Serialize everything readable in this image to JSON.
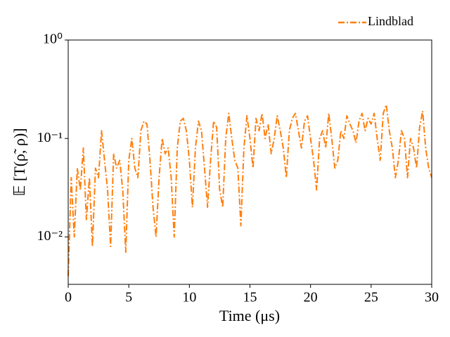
{
  "chart_data": {
    "type": "line",
    "xlabel": "Time (μs)",
    "ylabel": "𝔼 [T(ρ̃, ρ)]",
    "x": [
      0,
      0.25,
      0.5,
      0.75,
      1,
      1.25,
      1.5,
      1.75,
      2,
      2.25,
      2.5,
      2.75,
      3,
      3.25,
      3.5,
      3.75,
      4,
      4.25,
      4.5,
      4.75,
      5,
      5.25,
      5.5,
      5.75,
      6,
      6.25,
      6.5,
      6.75,
      7,
      7.25,
      7.5,
      7.75,
      8,
      8.25,
      8.5,
      8.75,
      9,
      9.25,
      9.5,
      9.75,
      10,
      10.25,
      10.5,
      10.75,
      11,
      11.25,
      11.5,
      11.75,
      12,
      12.25,
      12.5,
      12.75,
      13,
      13.25,
      13.5,
      13.75,
      14,
      14.25,
      14.5,
      14.75,
      15,
      15.25,
      15.5,
      15.75,
      16,
      16.25,
      16.5,
      16.75,
      17,
      17.25,
      17.5,
      17.75,
      18,
      18.25,
      18.5,
      18.75,
      19,
      19.25,
      19.5,
      19.75,
      20,
      20.25,
      20.5,
      20.75,
      21,
      21.25,
      21.5,
      21.75,
      22,
      22.25,
      22.5,
      22.75,
      23,
      23.25,
      23.5,
      23.75,
      24,
      24.25,
      24.5,
      24.75,
      25,
      25.25,
      25.5,
      25.75,
      26,
      26.25,
      26.5,
      26.75,
      27,
      27.25,
      27.5,
      27.75,
      28,
      28.25,
      28.5,
      28.75,
      29,
      29.25,
      29.5,
      29.75,
      30
    ],
    "series": [
      {
        "name": "Lindblad",
        "color": "#ff7f0e",
        "values": [
          0.004,
          0.04,
          0.01,
          0.05,
          0.03,
          0.08,
          0.015,
          0.04,
          0.008,
          0.05,
          0.04,
          0.12,
          0.06,
          0.03,
          0.008,
          0.07,
          0.05,
          0.06,
          0.03,
          0.007,
          0.06,
          0.1,
          0.05,
          0.04,
          0.12,
          0.15,
          0.14,
          0.06,
          0.02,
          0.01,
          0.04,
          0.1,
          0.07,
          0.08,
          0.04,
          0.01,
          0.08,
          0.15,
          0.16,
          0.12,
          0.06,
          0.02,
          0.08,
          0.15,
          0.12,
          0.05,
          0.02,
          0.06,
          0.15,
          0.13,
          0.03,
          0.02,
          0.1,
          0.18,
          0.1,
          0.06,
          0.05,
          0.013,
          0.08,
          0.17,
          0.1,
          0.05,
          0.16,
          0.12,
          0.18,
          0.1,
          0.14,
          0.07,
          0.1,
          0.17,
          0.12,
          0.08,
          0.04,
          0.12,
          0.16,
          0.18,
          0.12,
          0.08,
          0.15,
          0.17,
          0.1,
          0.06,
          0.03,
          0.1,
          0.12,
          0.08,
          0.18,
          0.1,
          0.05,
          0.06,
          0.12,
          0.1,
          0.17,
          0.14,
          0.12,
          0.09,
          0.15,
          0.18,
          0.12,
          0.16,
          0.14,
          0.18,
          0.1,
          0.06,
          0.18,
          0.22,
          0.12,
          0.08,
          0.04,
          0.06,
          0.12,
          0.1,
          0.04,
          0.1,
          0.08,
          0.05,
          0.13,
          0.19,
          0.08,
          0.05,
          0.04
        ]
      }
    ],
    "xlim": [
      0,
      30
    ],
    "xticks": [
      0,
      5,
      10,
      15,
      20,
      25,
      30
    ],
    "ylim": [
      0.0033,
      1
    ],
    "yticks": [
      {
        "value": 1,
        "label": "10⁰"
      },
      {
        "value": 0.1,
        "label": "10⁻¹"
      },
      {
        "value": 0.01,
        "label": "10⁻²"
      }
    ],
    "yscale": "log",
    "grid": false,
    "legend": "upper right"
  }
}
